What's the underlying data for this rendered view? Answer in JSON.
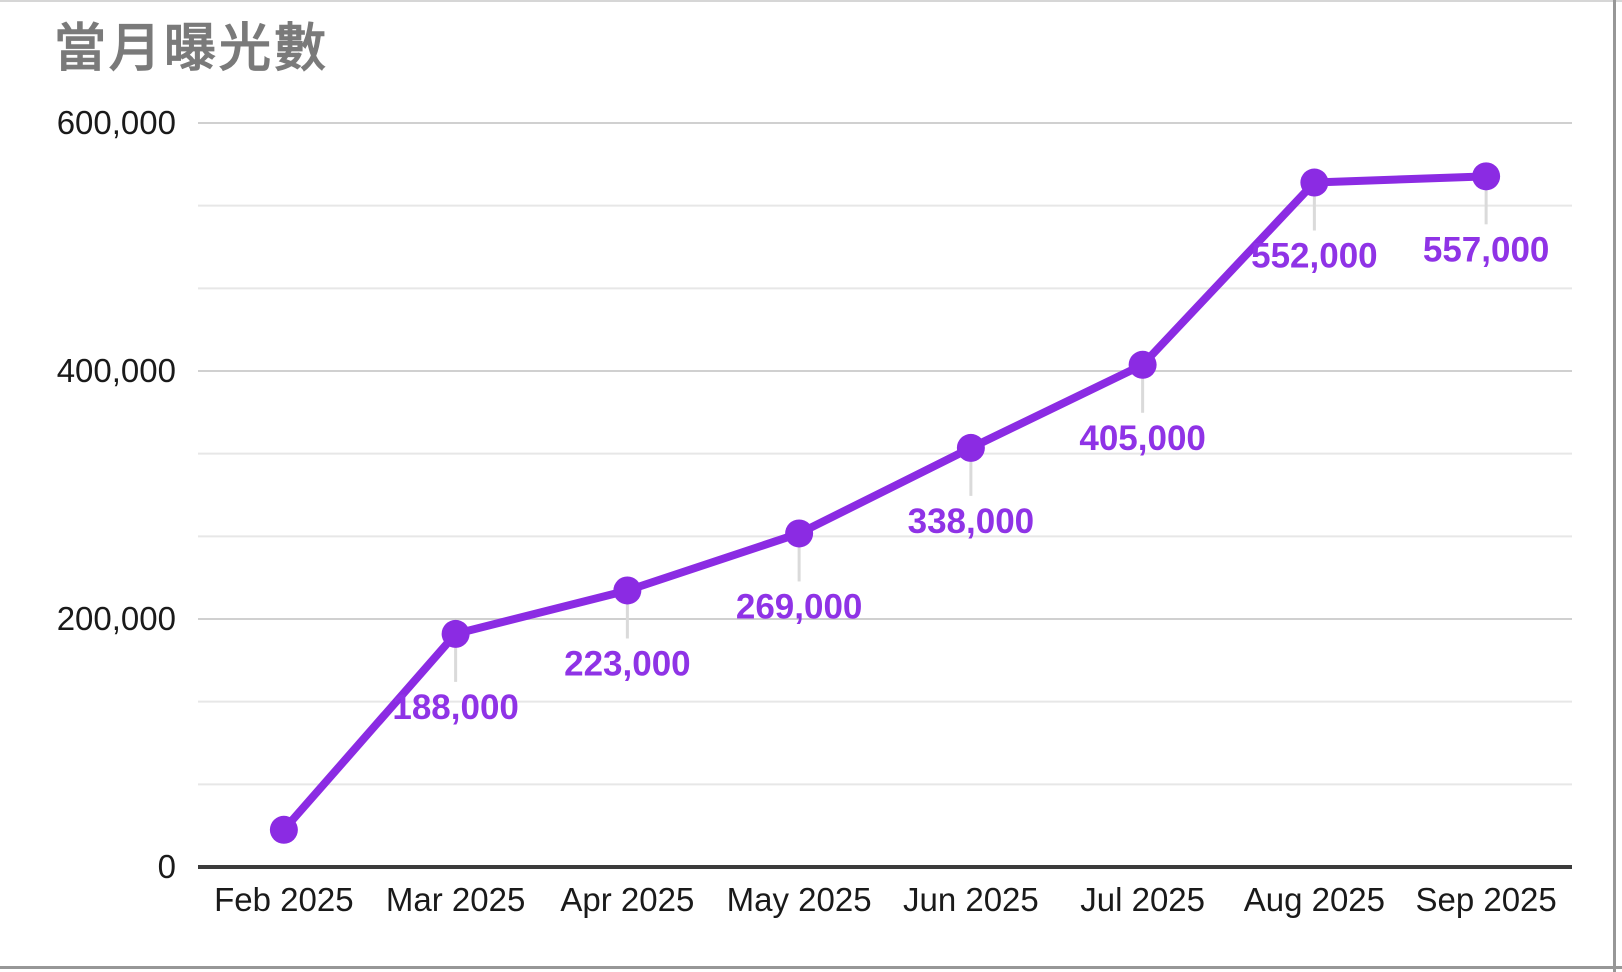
{
  "window": {
    "top_border_color": "#d6d6d6",
    "side_border_color": "#979797",
    "background": "#ffffff"
  },
  "chart_data": {
    "type": "line",
    "title": "當月曝光數",
    "categories": [
      "Feb 2025",
      "Mar 2025",
      "Apr 2025",
      "May 2025",
      "Jun 2025",
      "Jul 2025",
      "Aug 2025",
      "Sep 2025"
    ],
    "series": [
      {
        "name": "當月曝光數",
        "values": [
          30000,
          188000,
          223000,
          269000,
          338000,
          405000,
          552000,
          557000
        ],
        "point_labels": [
          "",
          "188,000",
          "223,000",
          "269,000",
          "338,000",
          "405,000",
          "552,000",
          "557,000"
        ]
      }
    ],
    "xlabel": "",
    "ylabel": "",
    "ylim": [
      0,
      600000
    ],
    "y_axis": {
      "ticks": [
        {
          "value": 0,
          "label": "0"
        },
        {
          "value": 200000,
          "label": "200,000"
        },
        {
          "value": 400000,
          "label": "400,000"
        },
        {
          "value": 600000,
          "label": "600,000"
        }
      ],
      "minor_divisions_per_major": 3
    },
    "grid": true,
    "legend_position": "none",
    "colors": {
      "series": "#8B2BE3",
      "annotation": "#8F33E6",
      "title": "#7a7a7a",
      "axis_line": "#3b3b3b",
      "tick_text": "#1a1a1a",
      "gridline_major": "#d0d0d0",
      "gridline_minor": "#e7e7e7",
      "annotation_stem": "#dadada"
    }
  }
}
